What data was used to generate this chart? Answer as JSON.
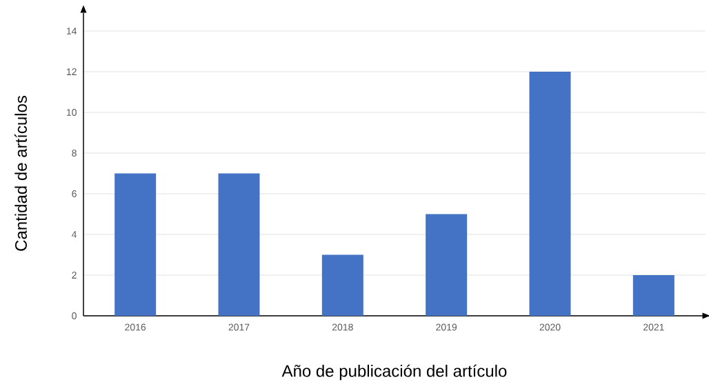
{
  "chart_data": {
    "type": "bar",
    "xlabel": "Año de publicación del artículo",
    "ylabel": "Cantidad de artículos",
    "categories": [
      "2016",
      "2017",
      "2018",
      "2019",
      "2020",
      "2021"
    ],
    "values": [
      7,
      7,
      3,
      5,
      12,
      2
    ],
    "color": "#4472c4",
    "ylim": [
      0,
      14
    ],
    "yticks": [
      0,
      2,
      4,
      6,
      8,
      10,
      12,
      14
    ],
    "grid": "y"
  }
}
